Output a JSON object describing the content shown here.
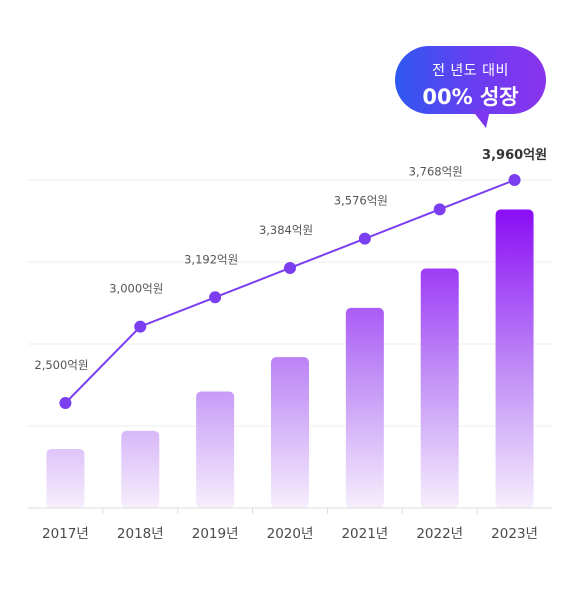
{
  "badge": {
    "line1": "전 년도 대비",
    "line2": "00% 성장"
  },
  "colors": {
    "line": "#7b3ff0",
    "bar_top_dark": "#8a0cf5",
    "bar_light": "#f2e9fb",
    "grid": "#ececec",
    "axis": "#dcdcdc",
    "label": "#4a4a4a"
  },
  "chart_data": {
    "type": "bar+line",
    "categories": [
      "2017년",
      "2018년",
      "2019년",
      "2020년",
      "2021년",
      "2022년",
      "2023년"
    ],
    "line_values": [
      2500,
      3000,
      3192,
      3384,
      3576,
      3768,
      3960
    ],
    "line_labels": [
      "2,500억원",
      "3,000억원",
      "3,192억원",
      "3,384억원",
      "3,576억원",
      "3,768억원",
      "3,960억원"
    ],
    "bar_relative_heights": [
      0.18,
      0.235,
      0.355,
      0.46,
      0.61,
      0.73,
      0.91
    ],
    "grid": true,
    "highlight_last_label": true
  }
}
